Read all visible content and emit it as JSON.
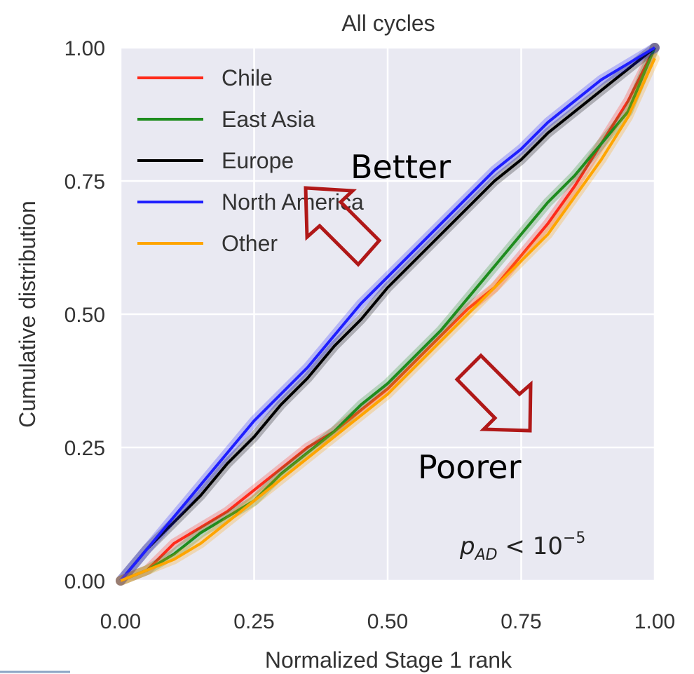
{
  "chart_data": {
    "type": "line",
    "title": "All cycles",
    "xlabel": "Normalized Stage 1 rank",
    "ylabel": "Cumulative distribution",
    "xlim": [
      0,
      1
    ],
    "ylim": [
      0,
      1
    ],
    "xticks": [
      "0.00",
      "0.25",
      "0.50",
      "0.75",
      "1.00"
    ],
    "yticks": [
      "0.00",
      "0.25",
      "0.50",
      "0.75",
      "1.00"
    ],
    "grid": true,
    "legend_position": "top-left",
    "series": [
      {
        "name": "Chile",
        "color": "#ff2a1a",
        "x": [
          0,
          0.05,
          0.1,
          0.15,
          0.2,
          0.25,
          0.3,
          0.35,
          0.4,
          0.45,
          0.5,
          0.55,
          0.6,
          0.65,
          0.7,
          0.75,
          0.8,
          0.85,
          0.9,
          0.95,
          1.0
        ],
        "y": [
          0,
          0.02,
          0.07,
          0.1,
          0.13,
          0.17,
          0.21,
          0.25,
          0.28,
          0.32,
          0.36,
          0.41,
          0.46,
          0.51,
          0.55,
          0.61,
          0.67,
          0.74,
          0.82,
          0.9,
          1.0
        ]
      },
      {
        "name": "East Asia",
        "color": "#1e8c1e",
        "x": [
          0,
          0.05,
          0.1,
          0.15,
          0.2,
          0.25,
          0.3,
          0.35,
          0.4,
          0.45,
          0.5,
          0.55,
          0.6,
          0.65,
          0.7,
          0.75,
          0.8,
          0.85,
          0.9,
          0.95,
          1.0
        ],
        "y": [
          0,
          0.02,
          0.05,
          0.09,
          0.12,
          0.15,
          0.2,
          0.24,
          0.28,
          0.33,
          0.37,
          0.42,
          0.47,
          0.53,
          0.59,
          0.65,
          0.71,
          0.76,
          0.82,
          0.88,
          1.0
        ]
      },
      {
        "name": "Europe",
        "color": "#000000",
        "x": [
          0,
          0.05,
          0.1,
          0.15,
          0.2,
          0.25,
          0.3,
          0.35,
          0.4,
          0.45,
          0.5,
          0.55,
          0.6,
          0.65,
          0.7,
          0.75,
          0.8,
          0.85,
          0.9,
          0.95,
          1.0
        ],
        "y": [
          0,
          0.06,
          0.11,
          0.16,
          0.22,
          0.27,
          0.33,
          0.38,
          0.44,
          0.49,
          0.55,
          0.6,
          0.65,
          0.7,
          0.75,
          0.79,
          0.84,
          0.88,
          0.92,
          0.96,
          1.0
        ]
      },
      {
        "name": "North America",
        "color": "#1f1fff",
        "x": [
          0,
          0.05,
          0.1,
          0.15,
          0.2,
          0.25,
          0.3,
          0.35,
          0.4,
          0.45,
          0.5,
          0.55,
          0.6,
          0.65,
          0.7,
          0.75,
          0.8,
          0.85,
          0.9,
          0.95,
          1.0
        ],
        "y": [
          0,
          0.06,
          0.12,
          0.18,
          0.24,
          0.3,
          0.35,
          0.4,
          0.46,
          0.52,
          0.57,
          0.62,
          0.67,
          0.72,
          0.77,
          0.81,
          0.86,
          0.9,
          0.94,
          0.97,
          1.0
        ]
      },
      {
        "name": "Other",
        "color": "#ffa500",
        "x": [
          0,
          0.05,
          0.1,
          0.15,
          0.2,
          0.25,
          0.3,
          0.35,
          0.4,
          0.45,
          0.5,
          0.55,
          0.6,
          0.65,
          0.7,
          0.75,
          0.8,
          0.85,
          0.9,
          0.95,
          1.0
        ],
        "y": [
          0,
          0.02,
          0.04,
          0.07,
          0.11,
          0.15,
          0.19,
          0.23,
          0.27,
          0.31,
          0.35,
          0.4,
          0.45,
          0.5,
          0.55,
          0.6,
          0.65,
          0.72,
          0.79,
          0.87,
          0.98
        ]
      }
    ],
    "annotations": {
      "better": "Better",
      "poorer": "Poorer",
      "p_base": "p",
      "p_sub": "AD",
      "p_rel": " < 10",
      "p_exp": "−5"
    }
  }
}
